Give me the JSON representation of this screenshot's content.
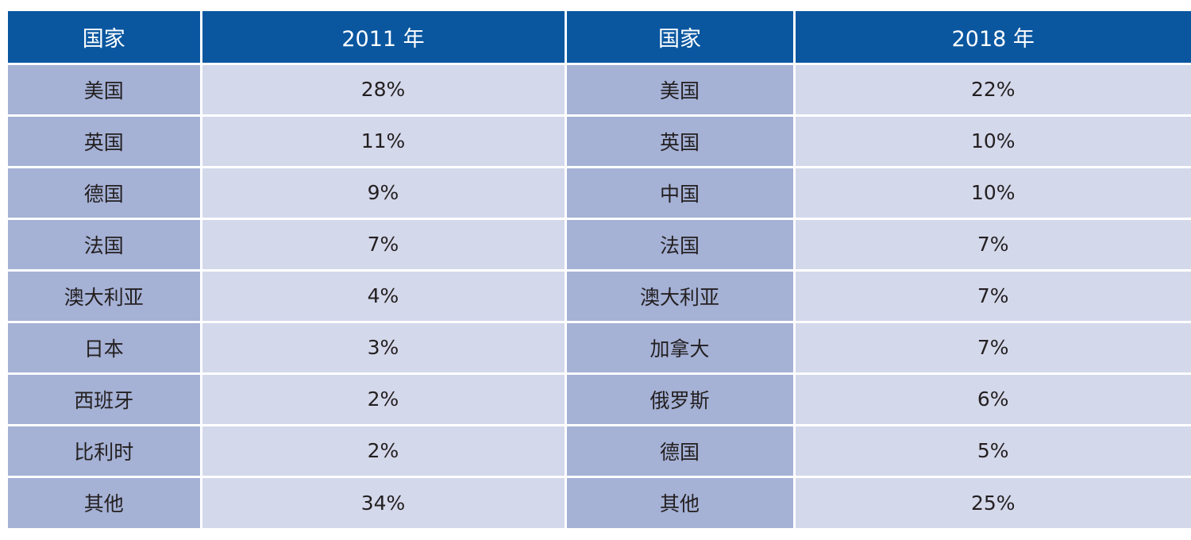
{
  "headers": {
    "country_a": "国家",
    "year_a": "2011 年",
    "country_b": "国家",
    "year_b": "2018 年"
  },
  "rows": [
    {
      "country_a": "美国",
      "value_a": "28%",
      "country_b": "美国",
      "value_b": "22%"
    },
    {
      "country_a": "英国",
      "value_a": "11%",
      "country_b": "英国",
      "value_b": "10%"
    },
    {
      "country_a": "德国",
      "value_a": "9%",
      "country_b": "中国",
      "value_b": "10%"
    },
    {
      "country_a": "法国",
      "value_a": "7%",
      "country_b": "法国",
      "value_b": "7%"
    },
    {
      "country_a": "澳大利亚",
      "value_a": "4%",
      "country_b": "澳大利亚",
      "value_b": "7%"
    },
    {
      "country_a": "日本",
      "value_a": "3%",
      "country_b": "加拿大",
      "value_b": "7%"
    },
    {
      "country_a": "西班牙",
      "value_a": "2%",
      "country_b": "俄罗斯",
      "value_b": "6%"
    },
    {
      "country_a": "比利时",
      "value_a": "2%",
      "country_b": "德国",
      "value_b": "5%"
    },
    {
      "country_a": "其他",
      "value_a": "34%",
      "country_b": "其他",
      "value_b": "25%"
    }
  ],
  "colors": {
    "header_bg": "#0a57a0",
    "country_cell_bg": "#a5b1d5",
    "value_cell_bg": "#d4d8eb"
  }
}
